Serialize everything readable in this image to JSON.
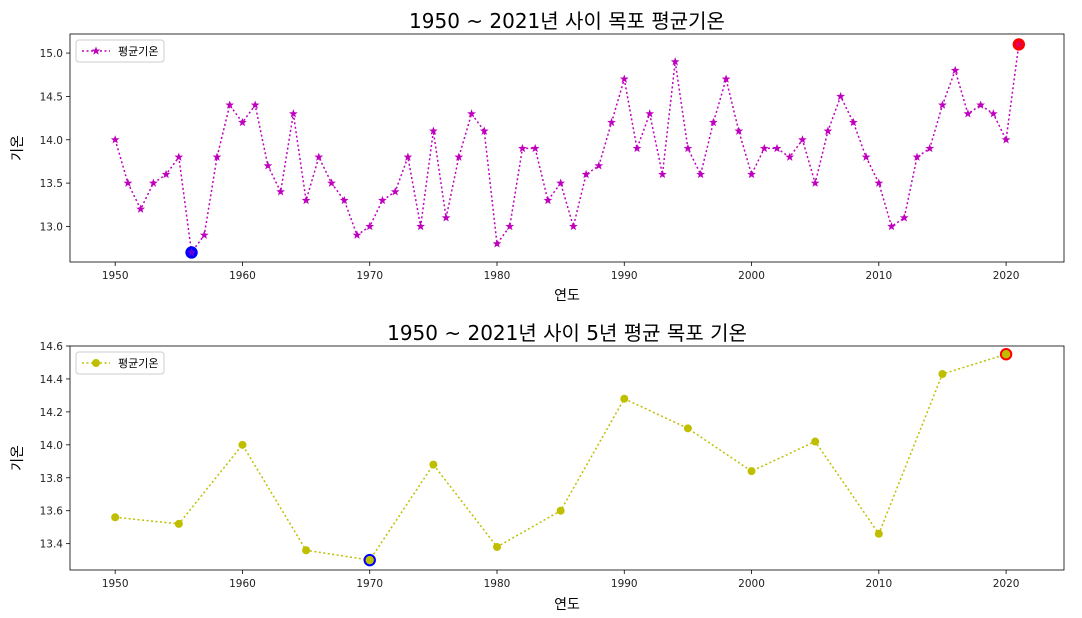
{
  "chart_data": [
    {
      "type": "line",
      "title": "1950 ~ 2021년 사이 목포 평균기온",
      "xlabel": "연도",
      "ylabel": "기온",
      "legend": "top-left",
      "grid": false,
      "xlim": [
        1946.45,
        2024.55
      ],
      "ylim": [
        12.59,
        15.22
      ],
      "xticks": [
        1950,
        1960,
        1970,
        1980,
        1990,
        2000,
        2010,
        2020
      ],
      "yticks": [
        13.0,
        13.5,
        14.0,
        14.5,
        15.0
      ],
      "series": [
        {
          "name": "평균기온",
          "color": "#bf00bf",
          "linestyle": "dotted",
          "marker": "star",
          "x": [
            1950,
            1951,
            1952,
            1953,
            1954,
            1955,
            1956,
            1957,
            1958,
            1959,
            1960,
            1961,
            1962,
            1963,
            1964,
            1965,
            1966,
            1967,
            1968,
            1969,
            1970,
            1971,
            1972,
            1973,
            1974,
            1975,
            1976,
            1977,
            1978,
            1979,
            1980,
            1981,
            1982,
            1983,
            1984,
            1985,
            1986,
            1987,
            1988,
            1989,
            1990,
            1991,
            1992,
            1993,
            1994,
            1995,
            1996,
            1997,
            1998,
            1999,
            2000,
            2001,
            2002,
            2003,
            2004,
            2005,
            2006,
            2007,
            2008,
            2009,
            2010,
            2011,
            2012,
            2013,
            2014,
            2015,
            2016,
            2017,
            2018,
            2019,
            2020,
            2021
          ],
          "y": [
            14.0,
            13.5,
            13.2,
            13.5,
            13.6,
            13.8,
            12.7,
            12.9,
            13.8,
            14.4,
            14.2,
            14.4,
            13.7,
            13.4,
            14.3,
            13.3,
            13.8,
            13.5,
            13.3,
            12.9,
            13.0,
            13.3,
            13.4,
            13.8,
            13.0,
            14.1,
            13.1,
            13.8,
            14.3,
            14.1,
            12.8,
            13.0,
            13.9,
            13.9,
            13.3,
            13.5,
            13.0,
            13.6,
            13.7,
            14.2,
            14.7,
            13.9,
            14.3,
            13.6,
            14.9,
            13.9,
            13.6,
            14.2,
            14.7,
            14.1,
            13.6,
            13.9,
            13.9,
            13.8,
            14.0,
            13.5,
            14.1,
            14.5,
            14.2,
            13.8,
            13.5,
            13.0,
            13.1,
            13.8,
            13.9,
            14.4,
            14.8,
            14.3,
            14.4,
            14.3,
            14.0,
            15.1
          ]
        }
      ],
      "highlights": [
        {
          "kind": "min",
          "x": 1956,
          "y": 12.7,
          "color": "#0000ff"
        },
        {
          "kind": "max",
          "x": 2021,
          "y": 15.1,
          "color": "#ff0000"
        }
      ]
    },
    {
      "type": "line",
      "title": "1950 ~ 2021년 사이 5년 평균 목포 기온",
      "xlabel": "연도",
      "ylabel": "기온",
      "legend": "top-left",
      "grid": false,
      "xlim": [
        1946.45,
        2024.55
      ],
      "ylim": [
        13.24,
        14.6
      ],
      "xticks": [
        1950,
        1960,
        1970,
        1980,
        1990,
        2000,
        2010,
        2020
      ],
      "yticks": [
        13.4,
        13.6,
        13.8,
        14.0,
        14.2,
        14.4,
        14.6
      ],
      "series": [
        {
          "name": "평균기온",
          "color": "#bfbf00",
          "linestyle": "dotted",
          "marker": "circle",
          "x": [
            1950,
            1955,
            1960,
            1965,
            1970,
            1975,
            1980,
            1985,
            1990,
            1995,
            2000,
            2005,
            2010,
            2015,
            2020
          ],
          "y": [
            13.56,
            13.52,
            14.0,
            13.36,
            13.3,
            13.88,
            13.38,
            13.6,
            14.28,
            14.1,
            13.84,
            14.02,
            13.46,
            14.43,
            14.55
          ]
        }
      ],
      "highlights": [
        {
          "kind": "min",
          "x": 1970,
          "y": 13.3,
          "color": "#0000ff"
        },
        {
          "kind": "max",
          "x": 2020,
          "y": 14.55,
          "color": "#ff0000"
        }
      ]
    }
  ]
}
